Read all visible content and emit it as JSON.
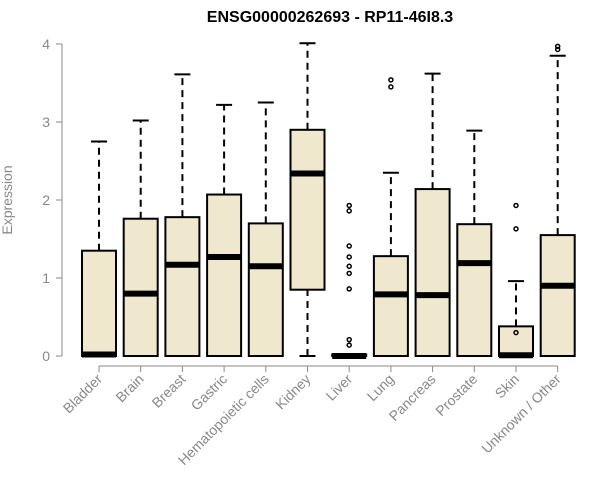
{
  "chart_data": {
    "type": "boxplot",
    "title": "ENSG00000262693 - RP11-46I8.3",
    "xlabel": "",
    "ylabel": "Expression",
    "ylim": [
      0,
      4
    ],
    "yticks": [
      0,
      1,
      2,
      3,
      4
    ],
    "grid": false,
    "box_fill": "#efe8cf",
    "box_stroke": "#000000",
    "axis_color": "#888888",
    "categories": [
      "Bladder",
      "Brain",
      "Breast",
      "Gastric",
      "Hematopoietic cells",
      "Kidney",
      "Liver",
      "Lung",
      "Pancreas",
      "Prostate",
      "Skin",
      "Unknown / Other"
    ],
    "boxes": [
      {
        "category": "Bladder",
        "whisker_low": 0,
        "q1": 0,
        "median": 0.02,
        "q3": 1.35,
        "whisker_high": 2.75,
        "outliers": []
      },
      {
        "category": "Brain",
        "whisker_low": 0,
        "q1": 0,
        "median": 0.8,
        "q3": 1.76,
        "whisker_high": 3.02,
        "outliers": []
      },
      {
        "category": "Breast",
        "whisker_low": 0,
        "q1": 0,
        "median": 1.17,
        "q3": 1.78,
        "whisker_high": 3.61,
        "outliers": []
      },
      {
        "category": "Gastric",
        "whisker_low": 0,
        "q1": 0,
        "median": 1.27,
        "q3": 2.07,
        "whisker_high": 3.22,
        "outliers": []
      },
      {
        "category": "Hematopoietic cells",
        "whisker_low": 0,
        "q1": 0,
        "median": 1.15,
        "q3": 1.7,
        "whisker_high": 3.25,
        "outliers": []
      },
      {
        "category": "Kidney",
        "whisker_low": 0,
        "q1": 0.85,
        "median": 2.34,
        "q3": 2.9,
        "whisker_high": 4.01,
        "outliers": []
      },
      {
        "category": "Liver",
        "whisker_low": 0,
        "q1": 0,
        "median": 0,
        "q3": 0.02,
        "whisker_high": 0.02,
        "outliers": [
          0.14,
          0.21,
          0.86,
          1.06,
          1.15,
          1.27,
          1.41,
          1.86,
          1.93
        ]
      },
      {
        "category": "Lung",
        "whisker_low": 0,
        "q1": 0,
        "median": 0.79,
        "q3": 1.28,
        "whisker_high": 2.35,
        "outliers": [
          3.45,
          3.54
        ]
      },
      {
        "category": "Pancreas",
        "whisker_low": 0,
        "q1": 0,
        "median": 0.78,
        "q3": 2.14,
        "whisker_high": 3.62,
        "outliers": []
      },
      {
        "category": "Prostate",
        "whisker_low": 0,
        "q1": 0,
        "median": 1.19,
        "q3": 1.69,
        "whisker_high": 2.89,
        "outliers": []
      },
      {
        "category": "Skin",
        "whisker_low": 0,
        "q1": 0,
        "median": 0.01,
        "q3": 0.38,
        "whisker_high": 0.96,
        "outliers": [
          1.63,
          1.93,
          0.3
        ]
      },
      {
        "category": "Unknown / Other",
        "whisker_low": 0,
        "q1": 0,
        "median": 0.9,
        "q3": 1.55,
        "whisker_high": 3.85,
        "outliers": [
          3.93,
          3.97
        ]
      }
    ]
  }
}
